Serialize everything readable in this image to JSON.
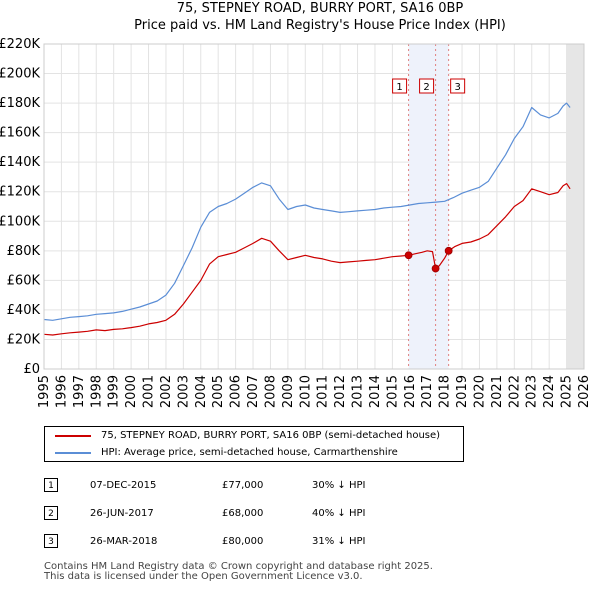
{
  "chart_data": {
    "type": "line",
    "title": "75, STEPNEY ROAD, BURRY PORT, SA16 0BP",
    "subtitle": "Price paid vs. HM Land Registry's House Price Index (HPI)",
    "xlabel": "",
    "ylabel": "",
    "xlim": [
      1995,
      2026
    ],
    "ylim": [
      0,
      220000
    ],
    "x_ticks": [
      "1995",
      "1996",
      "1997",
      "1998",
      "1999",
      "2000",
      "2001",
      "2002",
      "2003",
      "2004",
      "2005",
      "2006",
      "2007",
      "2008",
      "2009",
      "2010",
      "2011",
      "2012",
      "2013",
      "2014",
      "2015",
      "2016",
      "2017",
      "2018",
      "2019",
      "2020",
      "2021",
      "2022",
      "2023",
      "2024",
      "2025",
      "2026"
    ],
    "y_ticks": [
      {
        "value": 0,
        "label": "£0"
      },
      {
        "value": 20000,
        "label": "£20K"
      },
      {
        "value": 40000,
        "label": "£40K"
      },
      {
        "value": 60000,
        "label": "£60K"
      },
      {
        "value": 80000,
        "label": "£80K"
      },
      {
        "value": 100000,
        "label": "£100K"
      },
      {
        "value": 120000,
        "label": "£120K"
      },
      {
        "value": 140000,
        "label": "£140K"
      },
      {
        "value": 160000,
        "label": "£160K"
      },
      {
        "value": 180000,
        "label": "£180K"
      },
      {
        "value": 200000,
        "label": "£200K"
      },
      {
        "value": 220000,
        "label": "£220K"
      }
    ],
    "grid": true,
    "series": [
      {
        "name": "75, STEPNEY ROAD, BURRY PORT, SA16 0BP (semi-detached house)",
        "color": "#cc0000",
        "x": [
          1995.0,
          1995.5,
          1996.0,
          1996.5,
          1997.0,
          1997.5,
          1998.0,
          1998.5,
          1999.0,
          1999.5,
          2000.0,
          2000.5,
          2001.0,
          2001.5,
          2002.0,
          2002.5,
          2003.0,
          2003.5,
          2004.0,
          2004.5,
          2005.0,
          2005.5,
          2006.0,
          2006.5,
          2007.0,
          2007.5,
          2008.0,
          2008.5,
          2009.0,
          2009.5,
          2010.0,
          2010.5,
          2011.0,
          2011.5,
          2012.0,
          2012.5,
          2013.0,
          2013.5,
          2014.0,
          2014.5,
          2015.0,
          2015.5,
          2015.93,
          2016.3,
          2016.7,
          2017.0,
          2017.3,
          2017.48,
          2017.7,
          2018.0,
          2018.23,
          2018.6,
          2019.0,
          2019.5,
          2020.0,
          2020.5,
          2021.0,
          2021.5,
          2022.0,
          2022.5,
          2023.0,
          2023.5,
          2024.0,
          2024.5,
          2024.8,
          2025.0,
          2025.2
        ],
        "values": [
          23500,
          23000,
          23800,
          24500,
          25000,
          25500,
          26500,
          26000,
          26800,
          27200,
          28000,
          29000,
          30500,
          31500,
          33000,
          37000,
          44000,
          52000,
          60000,
          71000,
          76000,
          77500,
          79000,
          82000,
          85000,
          88500,
          86500,
          80000,
          74000,
          75500,
          77000,
          75500,
          74500,
          73000,
          72000,
          72500,
          73000,
          73500,
          74000,
          75000,
          76000,
          76500,
          77000,
          78000,
          79000,
          80000,
          79500,
          68000,
          70000,
          75000,
          80000,
          83000,
          85000,
          86000,
          88000,
          91000,
          97000,
          103000,
          110000,
          114000,
          122000,
          120000,
          118000,
          119500,
          124000,
          125500,
          122000
        ]
      },
      {
        "name": "HPI: Average price, semi-detached house, Carmarthenshire",
        "color": "#5b8ed6",
        "x": [
          1995.0,
          1995.5,
          1996.0,
          1996.5,
          1997.0,
          1997.5,
          1998.0,
          1998.5,
          1999.0,
          1999.5,
          2000.0,
          2000.5,
          2001.0,
          2001.5,
          2002.0,
          2002.5,
          2003.0,
          2003.5,
          2004.0,
          2004.5,
          2005.0,
          2005.5,
          2006.0,
          2006.5,
          2007.0,
          2007.5,
          2008.0,
          2008.5,
          2009.0,
          2009.5,
          2010.0,
          2010.5,
          2011.0,
          2011.5,
          2012.0,
          2012.5,
          2013.0,
          2013.5,
          2014.0,
          2014.5,
          2015.0,
          2015.5,
          2016.0,
          2016.5,
          2017.0,
          2017.5,
          2018.0,
          2018.5,
          2019.0,
          2019.5,
          2020.0,
          2020.5,
          2021.0,
          2021.5,
          2022.0,
          2022.5,
          2023.0,
          2023.5,
          2024.0,
          2024.5,
          2024.8,
          2025.0,
          2025.2
        ],
        "values": [
          33500,
          33000,
          34000,
          35000,
          35500,
          36000,
          37000,
          37500,
          38000,
          39000,
          40500,
          42000,
          44000,
          46000,
          50000,
          58000,
          70000,
          82000,
          96000,
          106000,
          110000,
          112000,
          115000,
          119000,
          123000,
          126000,
          124000,
          115000,
          108000,
          110000,
          111000,
          109000,
          108000,
          107000,
          106000,
          106500,
          107000,
          107500,
          108000,
          109000,
          109500,
          110000,
          111000,
          112000,
          112500,
          113000,
          113500,
          116000,
          119000,
          121000,
          123000,
          127000,
          136000,
          145000,
          156000,
          164000,
          177000,
          172000,
          170000,
          173000,
          178000,
          180000,
          177000
        ]
      }
    ],
    "sale_points": [
      {
        "marker": "1",
        "x": 2015.93,
        "value": 77000
      },
      {
        "marker": "2",
        "x": 2017.48,
        "value": 68000
      },
      {
        "marker": "3",
        "x": 2018.23,
        "value": 80000
      }
    ]
  },
  "legend": {
    "property_label": "75, STEPNEY ROAD, BURRY PORT, SA16 0BP (semi-detached house)",
    "hpi_label": "HPI: Average price, semi-detached house, Carmarthenshire"
  },
  "sales": [
    {
      "marker": "1",
      "date": "07-DEC-2015",
      "price": "£77,000",
      "hpi": "30% ↓ HPI"
    },
    {
      "marker": "2",
      "date": "26-JUN-2017",
      "price": "£68,000",
      "hpi": "40% ↓ HPI"
    },
    {
      "marker": "3",
      "date": "26-MAR-2018",
      "price": "£80,000",
      "hpi": "31% ↓ HPI"
    }
  ],
  "footer": {
    "line1": "Contains HM Land Registry data © Crown copyright and database right 2025.",
    "line2": "This data is licensed under the Open Government Licence v3.0."
  }
}
